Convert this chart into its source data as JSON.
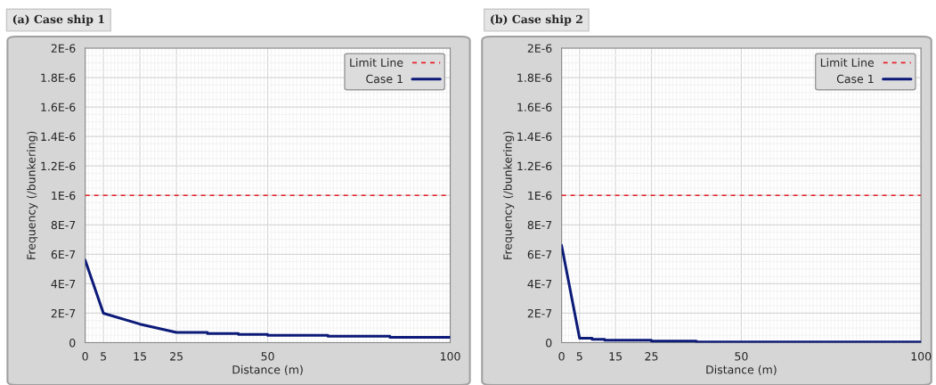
{
  "chart_data": [
    {
      "type": "line",
      "title": "(a) Case ship 1",
      "xlabel": "Distance (m)",
      "ylabel": "Frequency (/bunkering)",
      "xlim": [
        0,
        100
      ],
      "xticks": [
        0,
        5,
        15,
        25,
        50,
        100
      ],
      "ylim": [
        0,
        2e-06
      ],
      "yticks": [
        {
          "value": 0,
          "label": "0"
        },
        {
          "value": 2e-07,
          "label": "2E-7"
        },
        {
          "value": 4e-07,
          "label": "4E-7"
        },
        {
          "value": 6e-07,
          "label": "6E-7"
        },
        {
          "value": 8e-07,
          "label": "8E-7"
        },
        {
          "value": 1e-06,
          "label": "1E-6"
        },
        {
          "value": 1.2e-06,
          "label": "1.2E-6"
        },
        {
          "value": 1.4e-06,
          "label": "1.4E-6"
        },
        {
          "value": 1.6e-06,
          "label": "1.6E-6"
        },
        {
          "value": 1.8e-06,
          "label": "1.8E-6"
        },
        {
          "value": 2e-06,
          "label": "2E-6"
        }
      ],
      "series": [
        {
          "name": "Case 1",
          "color": "#0c1a78",
          "x": [
            0,
            5,
            15,
            25,
            33.5,
            33.5,
            42,
            42,
            50,
            50,
            66.5,
            66.5,
            83.5,
            83.5,
            100
          ],
          "values": [
            5.6e-07,
            2e-07,
            1.26e-07,
            7e-08,
            7e-08,
            6.2e-08,
            6.2e-08,
            5.6e-08,
            5.6e-08,
            5e-08,
            5e-08,
            4.4e-08,
            4.4e-08,
            3.6e-08,
            3.6e-08
          ]
        }
      ],
      "ref_lines": [
        {
          "axis": "y",
          "value": 1e-06,
          "label": "Limit Line",
          "color": "#e8202a",
          "line_style": "dashed"
        }
      ],
      "grid": true,
      "legend": "top right",
      "marker": "none",
      "line_style": "solid"
    },
    {
      "type": "line",
      "title": "(b) Case ship 2",
      "xlabel": "Distance (m)",
      "ylabel": "Frequency (/bunkering)",
      "xlim": [
        0,
        100
      ],
      "xticks": [
        0,
        5,
        15,
        25,
        50,
        100
      ],
      "ylim": [
        0,
        2e-06
      ],
      "yticks": [
        {
          "value": 0,
          "label": "0"
        },
        {
          "value": 2e-07,
          "label": "2E-7"
        },
        {
          "value": 4e-07,
          "label": "4E-7"
        },
        {
          "value": 6e-07,
          "label": "6E-7"
        },
        {
          "value": 8e-07,
          "label": "8E-7"
        },
        {
          "value": 1e-06,
          "label": "1E-6"
        },
        {
          "value": 1.2e-06,
          "label": "1.2E-6"
        },
        {
          "value": 1.4e-06,
          "label": "1.4E-6"
        },
        {
          "value": 1.6e-06,
          "label": "1.6E-6"
        },
        {
          "value": 1.8e-06,
          "label": "1.8E-6"
        },
        {
          "value": 2e-06,
          "label": "2E-6"
        }
      ],
      "series": [
        {
          "name": "Case 1",
          "color": "#0c1a78",
          "x": [
            0,
            5,
            8.5,
            8.5,
            12,
            12,
            25,
            25,
            37.5,
            37.5,
            100
          ],
          "values": [
            6.6e-07,
            3e-08,
            3e-08,
            2.3e-08,
            2.3e-08,
            1.6e-08,
            1.6e-08,
            1e-08,
            1e-08,
            4e-09,
            4e-09
          ]
        }
      ],
      "ref_lines": [
        {
          "axis": "y",
          "value": 1e-06,
          "label": "Limit Line",
          "color": "#e8202a",
          "line_style": "dashed"
        }
      ],
      "grid": true,
      "legend": "top right",
      "marker": "none",
      "line_style": "solid"
    }
  ]
}
